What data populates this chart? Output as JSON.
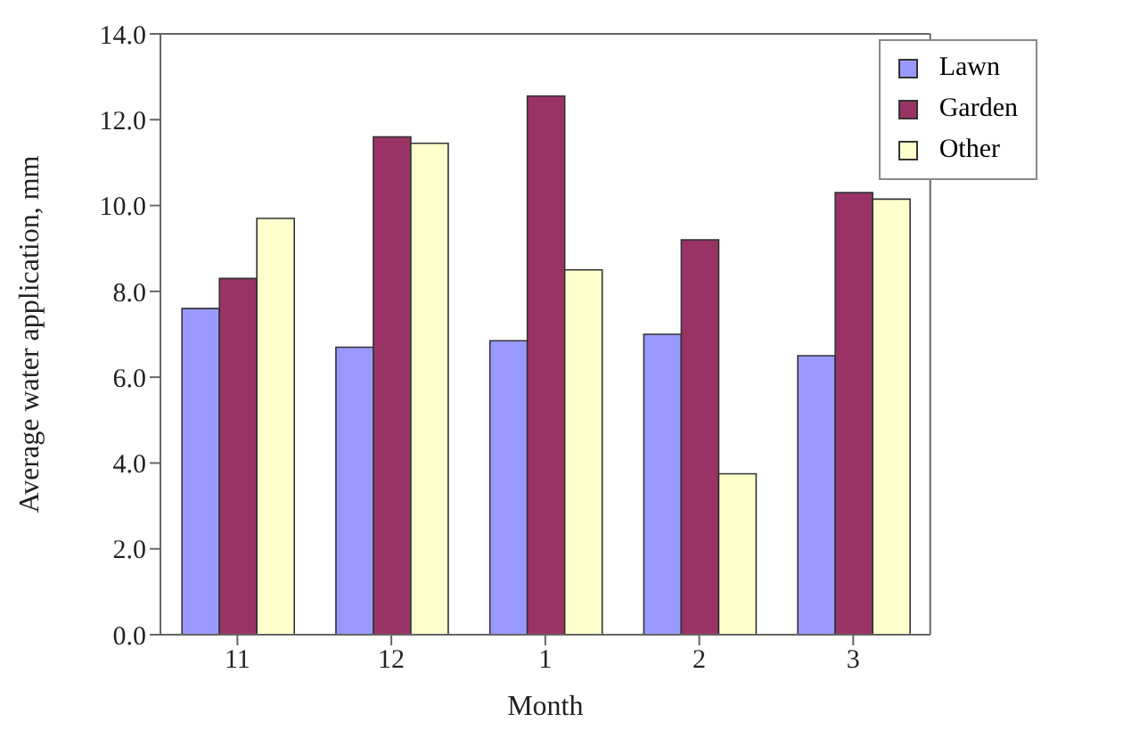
{
  "chart_data": {
    "type": "bar",
    "xlabel": "Month",
    "ylabel": "Average water application, mm",
    "categories": [
      "11",
      "12",
      "1",
      "2",
      "3"
    ],
    "series": [
      {
        "name": "Lawn",
        "color": "#9999ff",
        "values": [
          7.6,
          6.7,
          6.85,
          7.0,
          6.5
        ]
      },
      {
        "name": "Garden",
        "color": "#993366",
        "values": [
          8.3,
          11.6,
          12.55,
          9.2,
          10.3
        ]
      },
      {
        "name": "Other",
        "color": "#ffffcc",
        "values": [
          9.7,
          11.45,
          8.5,
          3.75,
          10.15
        ]
      }
    ],
    "ylim": [
      0,
      14
    ],
    "yticks": [
      {
        "value": 0,
        "label": "0.0"
      },
      {
        "value": 2,
        "label": "2.0"
      },
      {
        "value": 4,
        "label": "4.0"
      },
      {
        "value": 6,
        "label": "6.0"
      },
      {
        "value": 8,
        "label": "8.0"
      },
      {
        "value": 10,
        "label": "10.0"
      },
      {
        "value": 12,
        "label": "12.0"
      },
      {
        "value": 14,
        "label": "14.0"
      }
    ],
    "grid": false,
    "legend": "top right"
  }
}
